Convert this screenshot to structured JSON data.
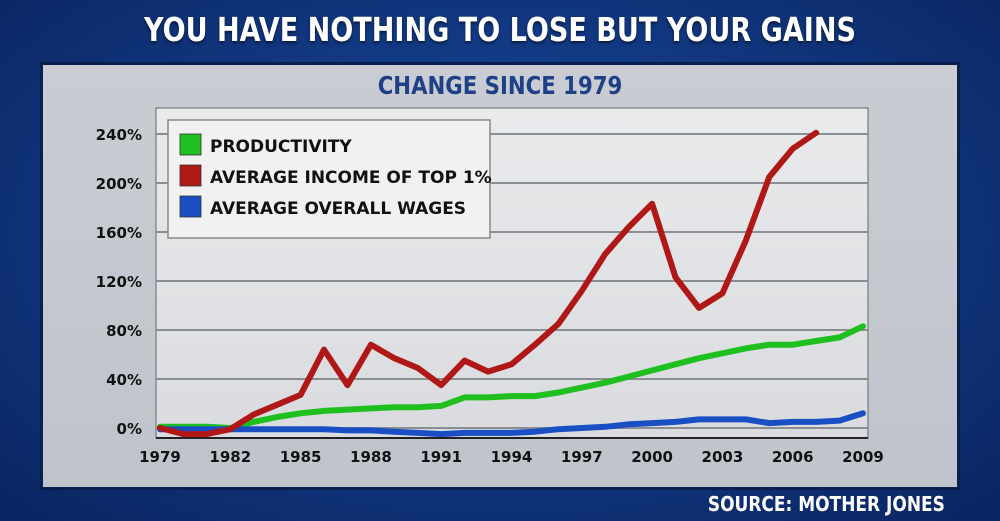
{
  "header": {
    "title": "YOU HAVE NOTHING TO LOSE BUT YOUR GAINS"
  },
  "footer": {
    "source": "SOURCE: MOTHER JONES"
  },
  "chart_data": {
    "type": "line",
    "title": "CHANGE SINCE 1979",
    "xlabel": "",
    "ylabel": "",
    "xlim": [
      1979,
      2009
    ],
    "ylim": [
      -10,
      250
    ],
    "x_ticks": [
      1979,
      1982,
      1985,
      1988,
      1991,
      1994,
      1997,
      2000,
      2003,
      2006,
      2009
    ],
    "y_ticks": [
      0,
      40,
      80,
      120,
      160,
      200,
      240
    ],
    "y_tick_labels": [
      "0%",
      "40%",
      "80%",
      "120%",
      "160%",
      "200%",
      "240%"
    ],
    "grid": true,
    "legend_position": "top-left",
    "series": [
      {
        "name": "PRODUCTIVITY",
        "color": "#1fbf1f",
        "x": [
          1979,
          1980,
          1981,
          1982,
          1983,
          1984,
          1985,
          1986,
          1987,
          1988,
          1989,
          1990,
          1991,
          1992,
          1993,
          1994,
          1995,
          1996,
          1997,
          1998,
          1999,
          2000,
          2001,
          2002,
          2003,
          2004,
          2005,
          2006,
          2007,
          2008,
          2009
        ],
        "y": [
          1,
          1,
          1,
          0,
          5,
          9,
          12,
          14,
          15,
          16,
          17,
          17,
          18,
          25,
          25,
          26,
          26,
          29,
          33,
          37,
          42,
          47,
          52,
          57,
          61,
          65,
          68,
          68,
          71,
          74,
          83
        ]
      },
      {
        "name": "AVERAGE INCOME OF TOP 1%",
        "color": "#b01818",
        "x": [
          1979,
          1980,
          1981,
          1982,
          1983,
          1984,
          1985,
          1986,
          1987,
          1988,
          1989,
          1990,
          1991,
          1992,
          1993,
          1994,
          1995,
          1996,
          1997,
          1998,
          1999,
          2000,
          2001,
          2002,
          2003,
          2004,
          2005,
          2006,
          2007
        ],
        "y": [
          0,
          -5,
          -5,
          -1,
          11,
          19,
          27,
          64,
          35,
          68,
          57,
          49,
          35,
          55,
          46,
          52,
          68,
          85,
          112,
          142,
          164,
          183,
          123,
          98,
          110,
          153,
          205,
          228,
          241
        ]
      },
      {
        "name": "AVERAGE OVERALL WAGES",
        "color": "#1a4fc4",
        "x": [
          1979,
          1980,
          1981,
          1982,
          1983,
          1984,
          1985,
          1986,
          1987,
          1988,
          1989,
          1990,
          1991,
          1992,
          1993,
          1994,
          1995,
          1996,
          1997,
          1998,
          1999,
          2000,
          2001,
          2002,
          2003,
          2004,
          2005,
          2006,
          2007,
          2008,
          2009
        ],
        "y": [
          -1,
          -1,
          -1,
          -1,
          -1,
          -1,
          -1,
          -1,
          -2,
          -2,
          -3,
          -4,
          -5,
          -4,
          -4,
          -4,
          -3,
          -1,
          0,
          1,
          3,
          4,
          5,
          7,
          7,
          7,
          4,
          5,
          5,
          6,
          12
        ]
      }
    ]
  }
}
